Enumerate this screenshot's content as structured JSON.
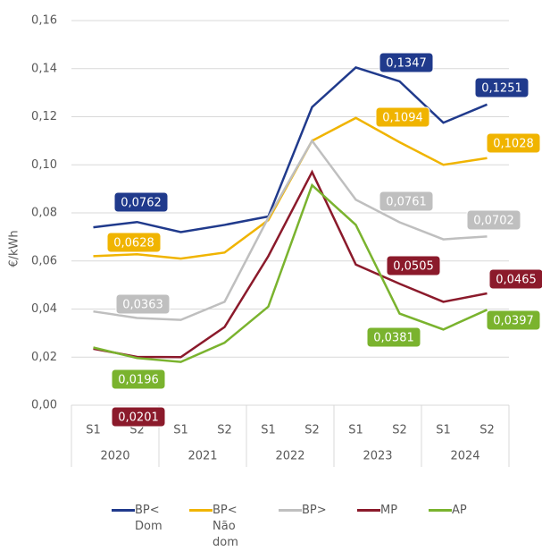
{
  "chart_data": {
    "type": "line",
    "y_axis_label": "€/kWh",
    "categories": [
      "S1",
      "S2",
      "S1",
      "S2",
      "S1",
      "S2",
      "S1",
      "S2",
      "S1",
      "S2"
    ],
    "years": [
      "2020",
      "2021",
      "2022",
      "2023",
      "2024"
    ],
    "ylim": [
      0,
      0.16
    ],
    "yticks": [
      {
        "value": 0,
        "label": "0,00"
      },
      {
        "value": 0.02,
        "label": "0,02"
      },
      {
        "value": 0.04,
        "label": "0,04"
      },
      {
        "value": 0.06,
        "label": "0,06"
      },
      {
        "value": 0.08,
        "label": "0,08"
      },
      {
        "value": 0.1,
        "label": "0,10"
      },
      {
        "value": 0.12,
        "label": "0,12"
      },
      {
        "value": 0.14,
        "label": "0,14"
      },
      {
        "value": 0.16,
        "label": "0,16"
      }
    ],
    "grid": true,
    "legend": "bottom",
    "series": [
      {
        "name": "BP< Dom",
        "color": "#203a8c",
        "values": [
          0.074,
          0.0762,
          0.072,
          0.075,
          0.0785,
          0.124,
          0.1405,
          0.1347,
          0.1175,
          0.1251
        ],
        "value_labels": [
          null,
          "0,0762",
          null,
          null,
          null,
          null,
          null,
          "0,1347",
          null,
          "0,1251"
        ]
      },
      {
        "name": "BP< Não dom",
        "color": "#f0b400",
        "values": [
          0.062,
          0.0628,
          0.061,
          0.0635,
          0.077,
          0.11,
          0.1195,
          0.1094,
          0.1,
          0.1028
        ],
        "value_labels": [
          null,
          "0,0628",
          null,
          null,
          null,
          null,
          null,
          "0,1094",
          null,
          "0,1028"
        ]
      },
      {
        "name": "BP>",
        "color": "#bfbfbf",
        "values": [
          0.039,
          0.0363,
          0.0355,
          0.043,
          0.078,
          0.11,
          0.0855,
          0.0761,
          0.069,
          0.0702
        ],
        "value_labels": [
          null,
          "0,0363",
          null,
          null,
          null,
          null,
          null,
          "0,0761",
          null,
          "0,0702"
        ]
      },
      {
        "name": "MP",
        "color": "#8b1a2b",
        "values": [
          0.0235,
          0.0201,
          0.02,
          0.0325,
          0.062,
          0.097,
          0.0585,
          0.0505,
          0.043,
          0.0465
        ],
        "value_labels": [
          null,
          "0,0201",
          null,
          null,
          null,
          null,
          null,
          "0,0505",
          null,
          "0,0465"
        ]
      },
      {
        "name": "AP",
        "color": "#7ab32e",
        "values": [
          0.024,
          0.0196,
          0.018,
          0.026,
          0.041,
          0.0915,
          0.075,
          0.0381,
          0.0315,
          0.0397
        ],
        "value_labels": [
          null,
          "0,0196",
          null,
          null,
          null,
          null,
          null,
          "0,0381",
          null,
          "0,0397"
        ]
      }
    ]
  }
}
